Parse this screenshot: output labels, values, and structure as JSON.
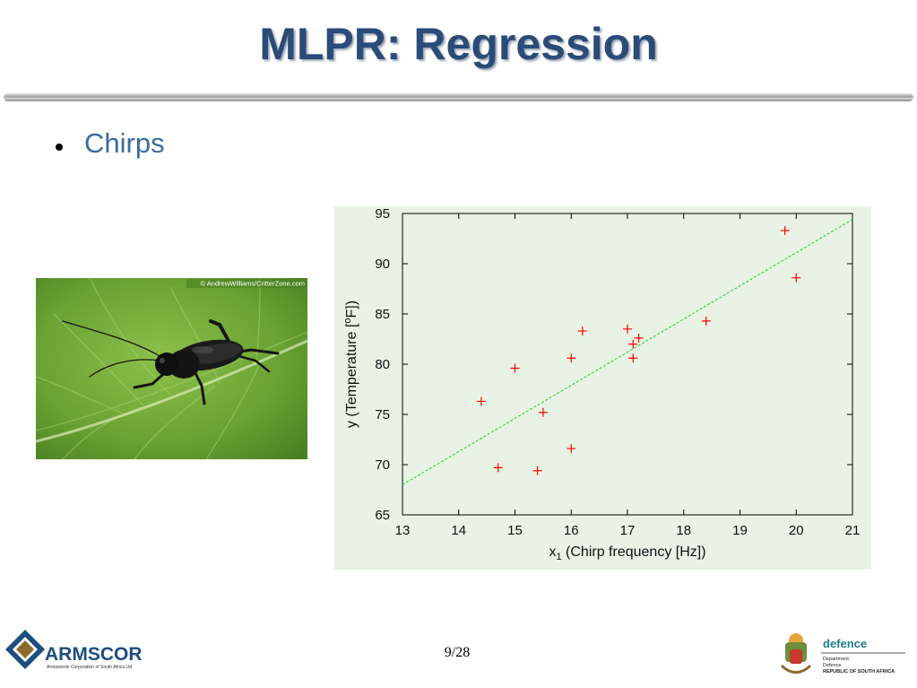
{
  "slide": {
    "title": "MLPR: Regression",
    "bullet": "Chirps",
    "page_number": "9/28"
  },
  "photo": {
    "credit": "© AndrewWilliams/CritterZone.com"
  },
  "logos": {
    "armscor_name": "ARMSCOR",
    "armscor_tagline": "Armaments Corporation of South Africa Ltd",
    "defence_name": "defence",
    "defence_line1": "Department:",
    "defence_line2": "Defence",
    "defence_line3": "REPUBLIC OF SOUTH AFRICA"
  },
  "colors": {
    "title": "#2b4b78",
    "bullet_text": "#3a6aa2",
    "chart_background": "#e8f3e5",
    "points": "#ff0000",
    "fit_line": "#33cc33"
  },
  "chart_data": {
    "type": "scatter",
    "xlabel_main": "x",
    "xlabel_sub": "1",
    "xlabel_rest": " (Chirp frequency [Hz])",
    "ylabel_pre": "y (Temperature [",
    "ylabel_sup": "o",
    "ylabel_post": "F])",
    "xlim": [
      13,
      21
    ],
    "ylim": [
      65,
      95
    ],
    "xticks": [
      "13",
      "14",
      "15",
      "16",
      "17",
      "18",
      "19",
      "20",
      "21"
    ],
    "yticks": [
      "65",
      "70",
      "75",
      "80",
      "85",
      "90",
      "95"
    ],
    "grid": false,
    "marker": "plus",
    "points": [
      {
        "x": 14.4,
        "y": 76.3
      },
      {
        "x": 14.7,
        "y": 69.7
      },
      {
        "x": 15.0,
        "y": 79.6
      },
      {
        "x": 15.4,
        "y": 69.4
      },
      {
        "x": 15.5,
        "y": 75.2
      },
      {
        "x": 16.0,
        "y": 71.6
      },
      {
        "x": 16.0,
        "y": 80.6
      },
      {
        "x": 16.2,
        "y": 83.3
      },
      {
        "x": 17.0,
        "y": 83.5
      },
      {
        "x": 17.1,
        "y": 80.6
      },
      {
        "x": 17.1,
        "y": 82.0
      },
      {
        "x": 17.2,
        "y": 82.6
      },
      {
        "x": 18.4,
        "y": 84.3
      },
      {
        "x": 19.8,
        "y": 93.3
      },
      {
        "x": 20.0,
        "y": 88.6
      }
    ],
    "fit_line": {
      "x": [
        13,
        21
      ],
      "y": [
        68.0,
        94.4
      ],
      "style": "dashed"
    }
  }
}
